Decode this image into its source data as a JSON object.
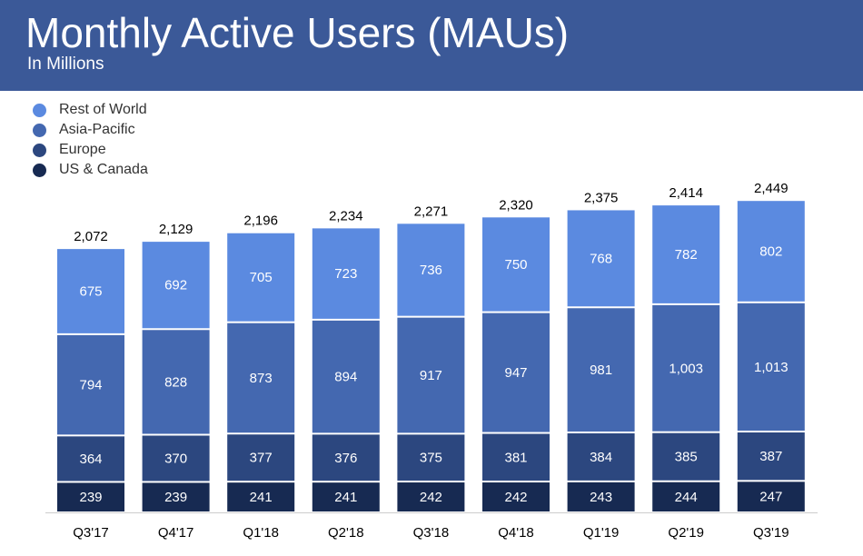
{
  "header": {
    "title": "Monthly Active Users (MAUs)",
    "subtitle": "In Millions",
    "color": "#3b5998"
  },
  "chart_data": {
    "type": "bar",
    "stacked": true,
    "title": "Monthly Active Users (MAUs)",
    "subtitle": "In Millions",
    "categories": [
      "Q3'17",
      "Q4'17",
      "Q1'18",
      "Q2'18",
      "Q3'18",
      "Q4'18",
      "Q1'19",
      "Q2'19",
      "Q3'19"
    ],
    "series": [
      {
        "name": "US & Canada",
        "color": "#172a52",
        "values": [
          239,
          239,
          241,
          241,
          242,
          242,
          243,
          244,
          247
        ]
      },
      {
        "name": "Europe",
        "color": "#2c477f",
        "values": [
          364,
          370,
          377,
          376,
          375,
          381,
          384,
          385,
          387
        ]
      },
      {
        "name": "Asia-Pacific",
        "color": "#4468b0",
        "values": [
          794,
          828,
          873,
          894,
          917,
          947,
          981,
          1003,
          1013
        ]
      },
      {
        "name": "Rest of World",
        "color": "#5b8ae0",
        "values": [
          675,
          692,
          705,
          723,
          736,
          750,
          768,
          782,
          802
        ]
      }
    ],
    "totals": [
      2072,
      2129,
      2196,
      2234,
      2271,
      2320,
      2375,
      2414,
      2449
    ],
    "ylim": [
      0,
      2600
    ],
    "grid": false,
    "legend_position": "top-left"
  }
}
